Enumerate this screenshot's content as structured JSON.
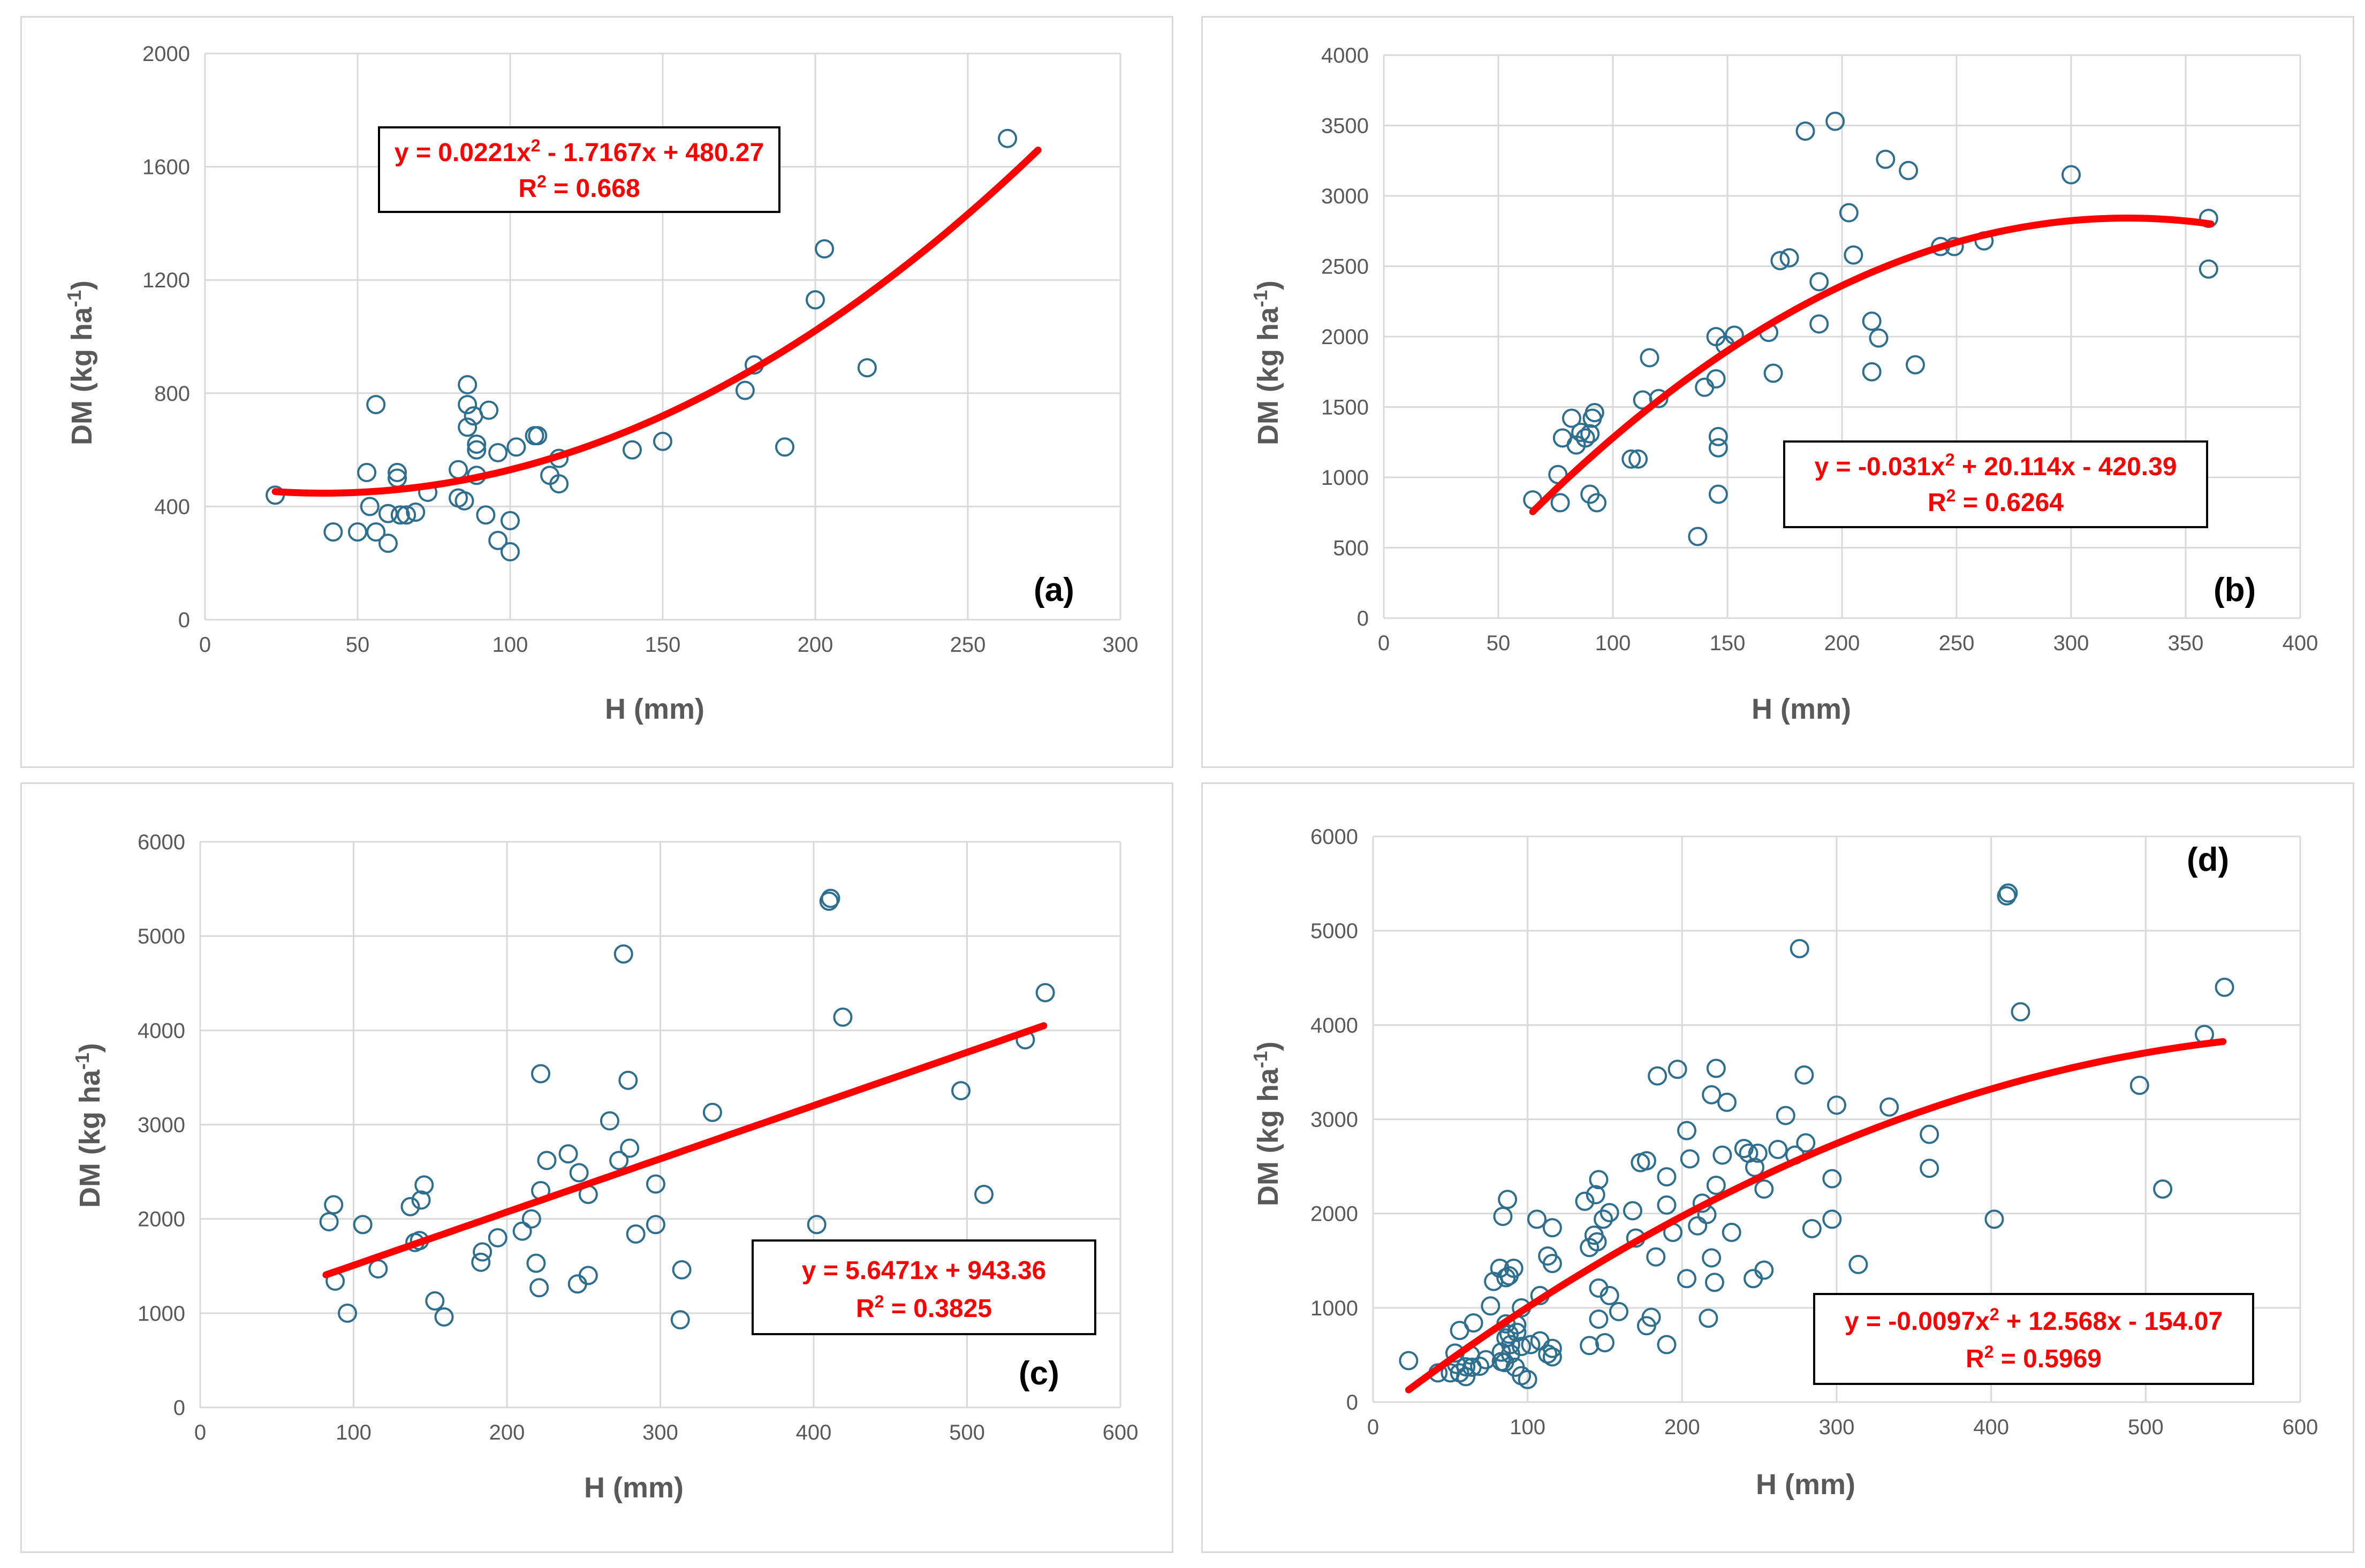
{
  "figure": {
    "page_background": "#ffffff",
    "panel_border": "#d9d9d9",
    "marker_color": "#2e6e8e",
    "trend_color": "#ff0000"
  },
  "chart_data": [
    {
      "type": "scatter",
      "panel_label": "(a)",
      "xlabel": "H (mm)",
      "ylabel": "DM (kg ha",
      "ylabel_sup": "-1",
      "ylabel_close": ")",
      "xlim": [
        0,
        300
      ],
      "ylim": [
        0,
        2000
      ],
      "x_ticks": [
        0,
        50,
        100,
        150,
        200,
        250,
        300
      ],
      "y_ticks": [
        0,
        400,
        800,
        1200,
        1600,
        2000
      ],
      "x_tick_labels": [
        "0",
        "50",
        "100",
        "150",
        "200",
        "250",
        "300"
      ],
      "y_tick_labels": [
        "0",
        "400",
        "800",
        "1200",
        "1600",
        "2000"
      ],
      "grid": true,
      "trendline": {
        "kind": "poly2",
        "coefficients": [
          0.0221,
          -1.7167,
          480.27
        ],
        "x_range": [
          23,
          273
        ]
      },
      "equation": {
        "parts": [
          "y = 0.0221x",
          "2",
          " - 1.7167x + 480.27"
        ],
        "r2_parts": [
          "R",
          "2",
          " = 0.668"
        ]
      },
      "points": [
        [
          23,
          440
        ],
        [
          42,
          310
        ],
        [
          50,
          310
        ],
        [
          53,
          520
        ],
        [
          54,
          400
        ],
        [
          56,
          310
        ],
        [
          56,
          760
        ],
        [
          60,
          270
        ],
        [
          60,
          375
        ],
        [
          63,
          500
        ],
        [
          63,
          520
        ],
        [
          64,
          370
        ],
        [
          66,
          370
        ],
        [
          69,
          380
        ],
        [
          73,
          450
        ],
        [
          83,
          530
        ],
        [
          83,
          430
        ],
        [
          85,
          420
        ],
        [
          86,
          680
        ],
        [
          86,
          760
        ],
        [
          86,
          830
        ],
        [
          88,
          720
        ],
        [
          89,
          510
        ],
        [
          89,
          620
        ],
        [
          89,
          600
        ],
        [
          93,
          740
        ],
        [
          92,
          370
        ],
        [
          96,
          590
        ],
        [
          96,
          280
        ],
        [
          100,
          350
        ],
        [
          100,
          240
        ],
        [
          102,
          610
        ],
        [
          108,
          650
        ],
        [
          109,
          650
        ],
        [
          113,
          510
        ],
        [
          116,
          570
        ],
        [
          116,
          480
        ],
        [
          140,
          600
        ],
        [
          150,
          630
        ],
        [
          177,
          810
        ],
        [
          180,
          900
        ],
        [
          190,
          610
        ],
        [
          200,
          1130
        ],
        [
          203,
          1310
        ],
        [
          217,
          890
        ],
        [
          263,
          1700
        ]
      ]
    },
    {
      "type": "scatter",
      "panel_label": "(b)",
      "xlabel": "H (mm)",
      "ylabel": "DM (kg ha",
      "ylabel_sup": "-1",
      "ylabel_close": ")",
      "xlim": [
        0,
        400
      ],
      "ylim": [
        0,
        4000
      ],
      "x_ticks": [
        0,
        50,
        100,
        150,
        200,
        250,
        300,
        350,
        400
      ],
      "y_ticks": [
        0,
        500,
        1000,
        1500,
        2000,
        2500,
        3000,
        3500,
        4000
      ],
      "x_tick_labels": [
        "0",
        "50",
        "100",
        "150",
        "200",
        "250",
        "300",
        "350",
        "400"
      ],
      "y_tick_labels": [
        "0",
        "500",
        "1000",
        "1500",
        "2000",
        "2500",
        "3000",
        "3500",
        "4000"
      ],
      "grid": true,
      "trendline": {
        "kind": "poly2",
        "coefficients": [
          -0.031,
          20.114,
          -420.39
        ],
        "x_range": [
          65,
          361
        ]
      },
      "equation": {
        "parts": [
          "y = -0.031x",
          "2",
          " + 20.114x - 420.39"
        ],
        "r2_parts": [
          "R",
          "2",
          " = 0.6264"
        ]
      },
      "points": [
        [
          65,
          840
        ],
        [
          76,
          1020
        ],
        [
          77,
          820
        ],
        [
          78,
          1280
        ],
        [
          82,
          1420
        ],
        [
          84,
          1230
        ],
        [
          86,
          1320
        ],
        [
          88,
          1280
        ],
        [
          90,
          880
        ],
        [
          91,
          1420
        ],
        [
          92,
          1460
        ],
        [
          93,
          820
        ],
        [
          90,
          1310
        ],
        [
          108,
          1130
        ],
        [
          111,
          1130
        ],
        [
          113,
          1550
        ],
        [
          116,
          1850
        ],
        [
          120,
          1560
        ],
        [
          137,
          580
        ],
        [
          140,
          1640
        ],
        [
          145,
          1700
        ],
        [
          145,
          2000
        ],
        [
          146,
          1210
        ],
        [
          146,
          1290
        ],
        [
          146,
          880
        ],
        [
          149,
          1940
        ],
        [
          153,
          2010
        ],
        [
          168,
          2030
        ],
        [
          170,
          1740
        ],
        [
          173,
          2540
        ],
        [
          177,
          2560
        ],
        [
          184,
          3460
        ],
        [
          190,
          2390
        ],
        [
          190,
          2090
        ],
        [
          197,
          3530
        ],
        [
          203,
          2880
        ],
        [
          205,
          2580
        ],
        [
          213,
          2110
        ],
        [
          213,
          1750
        ],
        [
          216,
          1990
        ],
        [
          219,
          3260
        ],
        [
          229,
          3180
        ],
        [
          232,
          1800
        ],
        [
          243,
          2640
        ],
        [
          249,
          2640
        ],
        [
          262,
          2680
        ],
        [
          300,
          3150
        ],
        [
          360,
          2840
        ],
        [
          360,
          2480
        ]
      ]
    },
    {
      "type": "scatter",
      "panel_label": "(c)",
      "xlabel": "H (mm)",
      "ylabel": "DM (kg ha",
      "ylabel_sup": "-1",
      "ylabel_close": ")",
      "xlim": [
        0,
        600
      ],
      "ylim": [
        0,
        6000
      ],
      "x_ticks": [
        0,
        100,
        200,
        300,
        400,
        500,
        600
      ],
      "y_ticks": [
        0,
        1000,
        2000,
        3000,
        4000,
        5000,
        6000
      ],
      "x_tick_labels": [
        "0",
        "100",
        "200",
        "300",
        "400",
        "500",
        "600"
      ],
      "y_tick_labels": [
        "0",
        "1000",
        "2000",
        "3000",
        "4000",
        "5000",
        "6000"
      ],
      "grid": true,
      "trendline": {
        "kind": "linear",
        "coefficients": [
          0,
          5.6471,
          943.36
        ],
        "x_range": [
          82,
          550
        ]
      },
      "equation": {
        "parts": [
          "y = 5.6471x + 943.36",
          "",
          ""
        ],
        "r2_parts": [
          "R",
          "2",
          " = 0.3825"
        ]
      },
      "points": [
        [
          84,
          1970
        ],
        [
          87,
          2150
        ],
        [
          88,
          1340
        ],
        [
          96,
          1000
        ],
        [
          106,
          1940
        ],
        [
          116,
          1470
        ],
        [
          137,
          2130
        ],
        [
          140,
          1750
        ],
        [
          143,
          1770
        ],
        [
          144,
          2200
        ],
        [
          146,
          2360
        ],
        [
          153,
          1130
        ],
        [
          159,
          960
        ],
        [
          183,
          1540
        ],
        [
          184,
          1650
        ],
        [
          194,
          1800
        ],
        [
          210,
          1870
        ],
        [
          216,
          2000
        ],
        [
          219,
          1530
        ],
        [
          221,
          1270
        ],
        [
          222,
          2300
        ],
        [
          222,
          3540
        ],
        [
          226,
          2620
        ],
        [
          240,
          2690
        ],
        [
          246,
          1310
        ],
        [
          247,
          2490
        ],
        [
          253,
          1400
        ],
        [
          253,
          2260
        ],
        [
          267,
          3040
        ],
        [
          273,
          2620
        ],
        [
          276,
          4810
        ],
        [
          279,
          3470
        ],
        [
          280,
          2750
        ],
        [
          284,
          1840
        ],
        [
          297,
          2370
        ],
        [
          297,
          1940
        ],
        [
          313,
          930
        ],
        [
          314,
          1460
        ],
        [
          334,
          3130
        ],
        [
          402,
          1940
        ],
        [
          410,
          5370
        ],
        [
          411,
          5400
        ],
        [
          419,
          4140
        ],
        [
          496,
          3360
        ],
        [
          511,
          2260
        ],
        [
          538,
          3900
        ],
        [
          551,
          4400
        ]
      ]
    },
    {
      "type": "scatter",
      "panel_label": "(d)",
      "xlabel": "H (mm)",
      "ylabel": "DM (kg ha",
      "ylabel_sup": "-1",
      "ylabel_close": ")",
      "xlim": [
        0,
        600
      ],
      "ylim": [
        0,
        6000
      ],
      "x_ticks": [
        0,
        100,
        200,
        300,
        400,
        500,
        600
      ],
      "y_ticks": [
        0,
        1000,
        2000,
        3000,
        4000,
        5000,
        6000
      ],
      "x_tick_labels": [
        "0",
        "100",
        "200",
        "300",
        "400",
        "500",
        "600"
      ],
      "y_tick_labels": [
        "0",
        "1000",
        "2000",
        "3000",
        "4000",
        "5000",
        "6000"
      ],
      "grid": true,
      "trendline": {
        "kind": "poly2",
        "coefficients": [
          -0.0097,
          12.568,
          -154.07
        ],
        "x_range": [
          23,
          550
        ]
      },
      "equation": {
        "parts": [
          "y = -0.0097x",
          "2",
          " + 12.568x - 154.07"
        ],
        "r2_parts": [
          "R",
          "2",
          " = 0.5969"
        ]
      },
      "points": [
        [
          23,
          440
        ],
        [
          42,
          310
        ],
        [
          50,
          310
        ],
        [
          53,
          520
        ],
        [
          54,
          400
        ],
        [
          56,
          310
        ],
        [
          56,
          760
        ],
        [
          60,
          270
        ],
        [
          60,
          375
        ],
        [
          63,
          500
        ],
        [
          64,
          370
        ],
        [
          69,
          380
        ],
        [
          73,
          450
        ],
        [
          83,
          530
        ],
        [
          83,
          430
        ],
        [
          85,
          420
        ],
        [
          86,
          680
        ],
        [
          86,
          830
        ],
        [
          88,
          720
        ],
        [
          89,
          510
        ],
        [
          89,
          610
        ],
        [
          93,
          740
        ],
        [
          92,
          370
        ],
        [
          96,
          590
        ],
        [
          96,
          280
        ],
        [
          100,
          240
        ],
        [
          102,
          610
        ],
        [
          108,
          650
        ],
        [
          113,
          510
        ],
        [
          116,
          570
        ],
        [
          116,
          480
        ],
        [
          140,
          600
        ],
        [
          150,
          630
        ],
        [
          177,
          810
        ],
        [
          180,
          900
        ],
        [
          190,
          610
        ],
        [
          203,
          1310
        ],
        [
          217,
          890
        ],
        [
          65,
          840
        ],
        [
          76,
          1020
        ],
        [
          78,
          1280
        ],
        [
          82,
          1420
        ],
        [
          86,
          1320
        ],
        [
          91,
          1420
        ],
        [
          93,
          820
        ],
        [
          108,
          1130
        ],
        [
          113,
          1550
        ],
        [
          116,
          1850
        ],
        [
          140,
          1640
        ],
        [
          145,
          1700
        ],
        [
          146,
          1210
        ],
        [
          146,
          880
        ],
        [
          149,
          1940
        ],
        [
          153,
          2010
        ],
        [
          168,
          2030
        ],
        [
          170,
          1740
        ],
        [
          173,
          2540
        ],
        [
          177,
          2560
        ],
        [
          184,
          3460
        ],
        [
          190,
          2390
        ],
        [
          190,
          2090
        ],
        [
          197,
          3530
        ],
        [
          203,
          2880
        ],
        [
          205,
          2580
        ],
        [
          213,
          2110
        ],
        [
          216,
          1990
        ],
        [
          219,
          3260
        ],
        [
          229,
          3180
        ],
        [
          232,
          1800
        ],
        [
          243,
          2640
        ],
        [
          249,
          2640
        ],
        [
          262,
          2680
        ],
        [
          300,
          3150
        ],
        [
          360,
          2840
        ],
        [
          360,
          2480
        ],
        [
          84,
          1970
        ],
        [
          87,
          2150
        ],
        [
          88,
          1340
        ],
        [
          96,
          1000
        ],
        [
          106,
          1940
        ],
        [
          116,
          1470
        ],
        [
          137,
          2130
        ],
        [
          143,
          1770
        ],
        [
          144,
          2200
        ],
        [
          146,
          2360
        ],
        [
          153,
          1130
        ],
        [
          159,
          960
        ],
        [
          183,
          1540
        ],
        [
          194,
          1800
        ],
        [
          210,
          1870
        ],
        [
          219,
          1530
        ],
        [
          221,
          1270
        ],
        [
          222,
          2300
        ],
        [
          222,
          3540
        ],
        [
          226,
          2620
        ],
        [
          240,
          2690
        ],
        [
          246,
          1310
        ],
        [
          247,
          2490
        ],
        [
          253,
          1400
        ],
        [
          253,
          2260
        ],
        [
          267,
          3040
        ],
        [
          273,
          2620
        ],
        [
          276,
          4810
        ],
        [
          279,
          3470
        ],
        [
          280,
          2750
        ],
        [
          284,
          1840
        ],
        [
          297,
          2370
        ],
        [
          297,
          1940
        ],
        [
          313,
          930
        ],
        [
          314,
          1460
        ],
        [
          334,
          3130
        ],
        [
          402,
          1940
        ],
        [
          410,
          5370
        ],
        [
          411,
          5400
        ],
        [
          419,
          4140
        ],
        [
          496,
          3360
        ],
        [
          511,
          2260
        ],
        [
          538,
          3900
        ],
        [
          551,
          4400
        ]
      ]
    }
  ]
}
